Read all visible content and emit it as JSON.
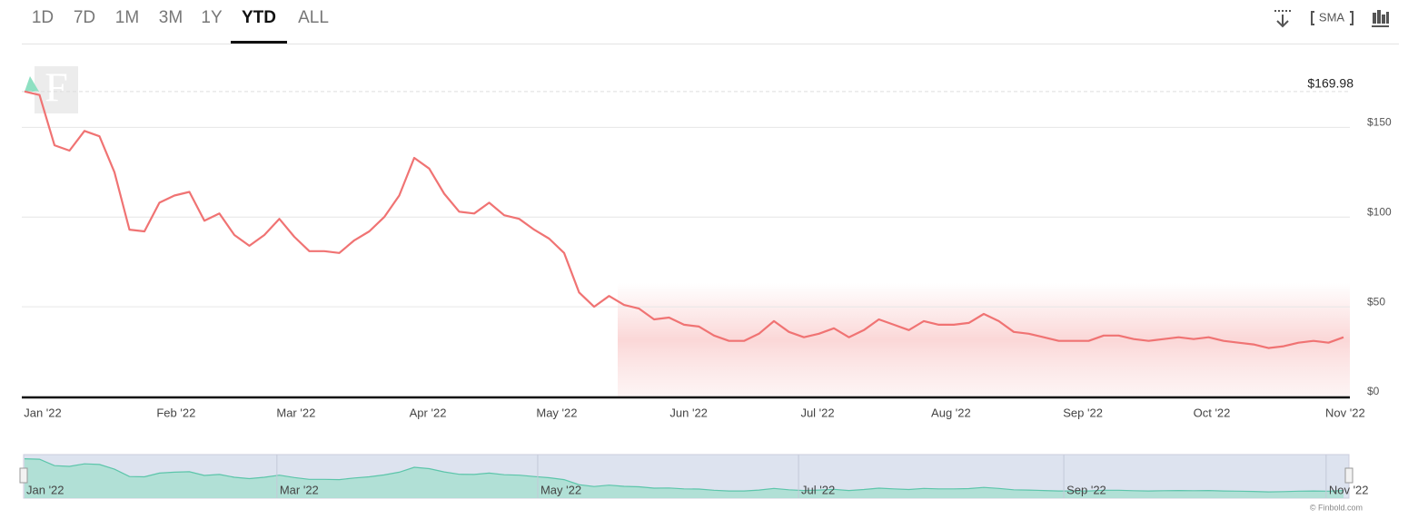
{
  "tabs": [
    "1D",
    "7D",
    "1M",
    "3M",
    "1Y",
    "YTD",
    "ALL"
  ],
  "selected_tab": "YTD",
  "toolbar": {
    "sma": "SMA"
  },
  "watermark": "F",
  "credit": "© Finbold.com",
  "chart_data": {
    "type": "line",
    "annotation": {
      "value": 169.98,
      "label": "$169.98"
    },
    "series": [
      {
        "color": "#f07373",
        "values": [
          170,
          168,
          140,
          137,
          148,
          145,
          125,
          93,
          92,
          108,
          112,
          114,
          98,
          102,
          90,
          84,
          90,
          99,
          89,
          81,
          81,
          80,
          87,
          92,
          100,
          112,
          133,
          127,
          113,
          103,
          102,
          108,
          101,
          99,
          93,
          88,
          80,
          58,
          50,
          56,
          51,
          49,
          43,
          44,
          40,
          39,
          34,
          31,
          31,
          35,
          42,
          36,
          33,
          35,
          38,
          33,
          37,
          43,
          40,
          37,
          42,
          40,
          40,
          41,
          46,
          42,
          36,
          35,
          33,
          31,
          31,
          31,
          34,
          34,
          32,
          31,
          32,
          33,
          32,
          33,
          31,
          30,
          29,
          27,
          28,
          30,
          31,
          30,
          33
        ]
      }
    ],
    "xlim": [
      0,
      88
    ],
    "xticks": [
      {
        "value": 0,
        "label": "Jan '22"
      },
      {
        "value": 8.9,
        "label": "Feb '22"
      },
      {
        "value": 16.9,
        "label": "Mar '22"
      },
      {
        "value": 25.7,
        "label": "Apr '22"
      },
      {
        "value": 34.3,
        "label": "May '22"
      },
      {
        "value": 43.1,
        "label": "Jun '22"
      },
      {
        "value": 51.7,
        "label": "Jul '22"
      },
      {
        "value": 60.6,
        "label": "Aug '22"
      },
      {
        "value": 69.4,
        "label": "Sep '22"
      },
      {
        "value": 78,
        "label": "Oct '22"
      },
      {
        "value": 86.9,
        "label": "Nov '22"
      }
    ],
    "ylim": [
      0,
      180
    ],
    "yticks": [
      {
        "value": 0,
        "label": "$0"
      },
      {
        "value": 50,
        "label": "$50"
      },
      {
        "value": 100,
        "label": "$100"
      },
      {
        "value": 150,
        "label": "$150"
      }
    ],
    "grid": true,
    "navigator": {
      "color": "#5cc5aa",
      "fill": "#a6dfcf",
      "background": "#dde3ef"
    }
  }
}
